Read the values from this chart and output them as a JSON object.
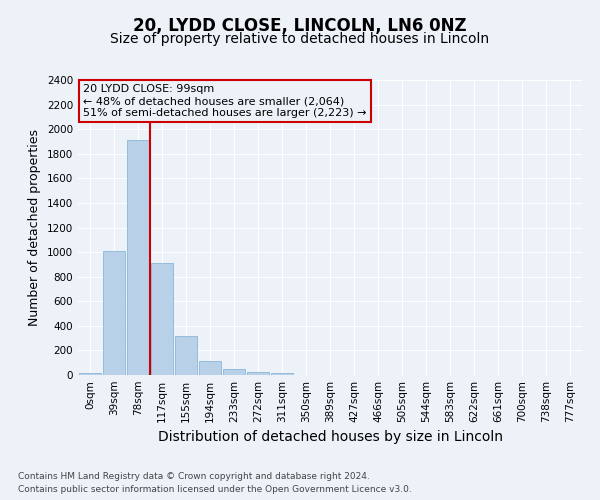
{
  "title": "20, LYDD CLOSE, LINCOLN, LN6 0NZ",
  "subtitle": "Size of property relative to detached houses in Lincoln",
  "xlabel": "Distribution of detached houses by size in Lincoln",
  "ylabel": "Number of detached properties",
  "bar_color": "#b8d0e8",
  "bar_edge_color": "#7aaed0",
  "vline_color": "#cc0000",
  "vline_x_index": 2,
  "annotation_title": "20 LYDD CLOSE: 99sqm",
  "annotation_line1": "← 48% of detached houses are smaller (2,064)",
  "annotation_line2": "51% of semi-detached houses are larger (2,223) →",
  "annotation_box_color": "#cc0000",
  "footer_line1": "Contains HM Land Registry data © Crown copyright and database right 2024.",
  "footer_line2": "Contains public sector information licensed under the Open Government Licence v3.0.",
  "categories": [
    "0sqm",
    "39sqm",
    "78sqm",
    "117sqm",
    "155sqm",
    "194sqm",
    "233sqm",
    "272sqm",
    "311sqm",
    "350sqm",
    "389sqm",
    "427sqm",
    "466sqm",
    "505sqm",
    "544sqm",
    "583sqm",
    "622sqm",
    "661sqm",
    "700sqm",
    "738sqm",
    "777sqm"
  ],
  "values": [
    15,
    1010,
    1910,
    910,
    315,
    110,
    45,
    25,
    20,
    0,
    0,
    0,
    0,
    0,
    0,
    0,
    0,
    0,
    0,
    0,
    0
  ],
  "ylim": [
    0,
    2400
  ],
  "yticks": [
    0,
    200,
    400,
    600,
    800,
    1000,
    1200,
    1400,
    1600,
    1800,
    2000,
    2200,
    2400
  ],
  "background_color": "#edf2f9",
  "grid_color": "#ffffff",
  "title_fontsize": 12,
  "subtitle_fontsize": 10,
  "ylabel_fontsize": 9,
  "xlabel_fontsize": 10,
  "tick_fontsize": 7.5,
  "annotation_fontsize": 8,
  "footer_fontsize": 6.5
}
